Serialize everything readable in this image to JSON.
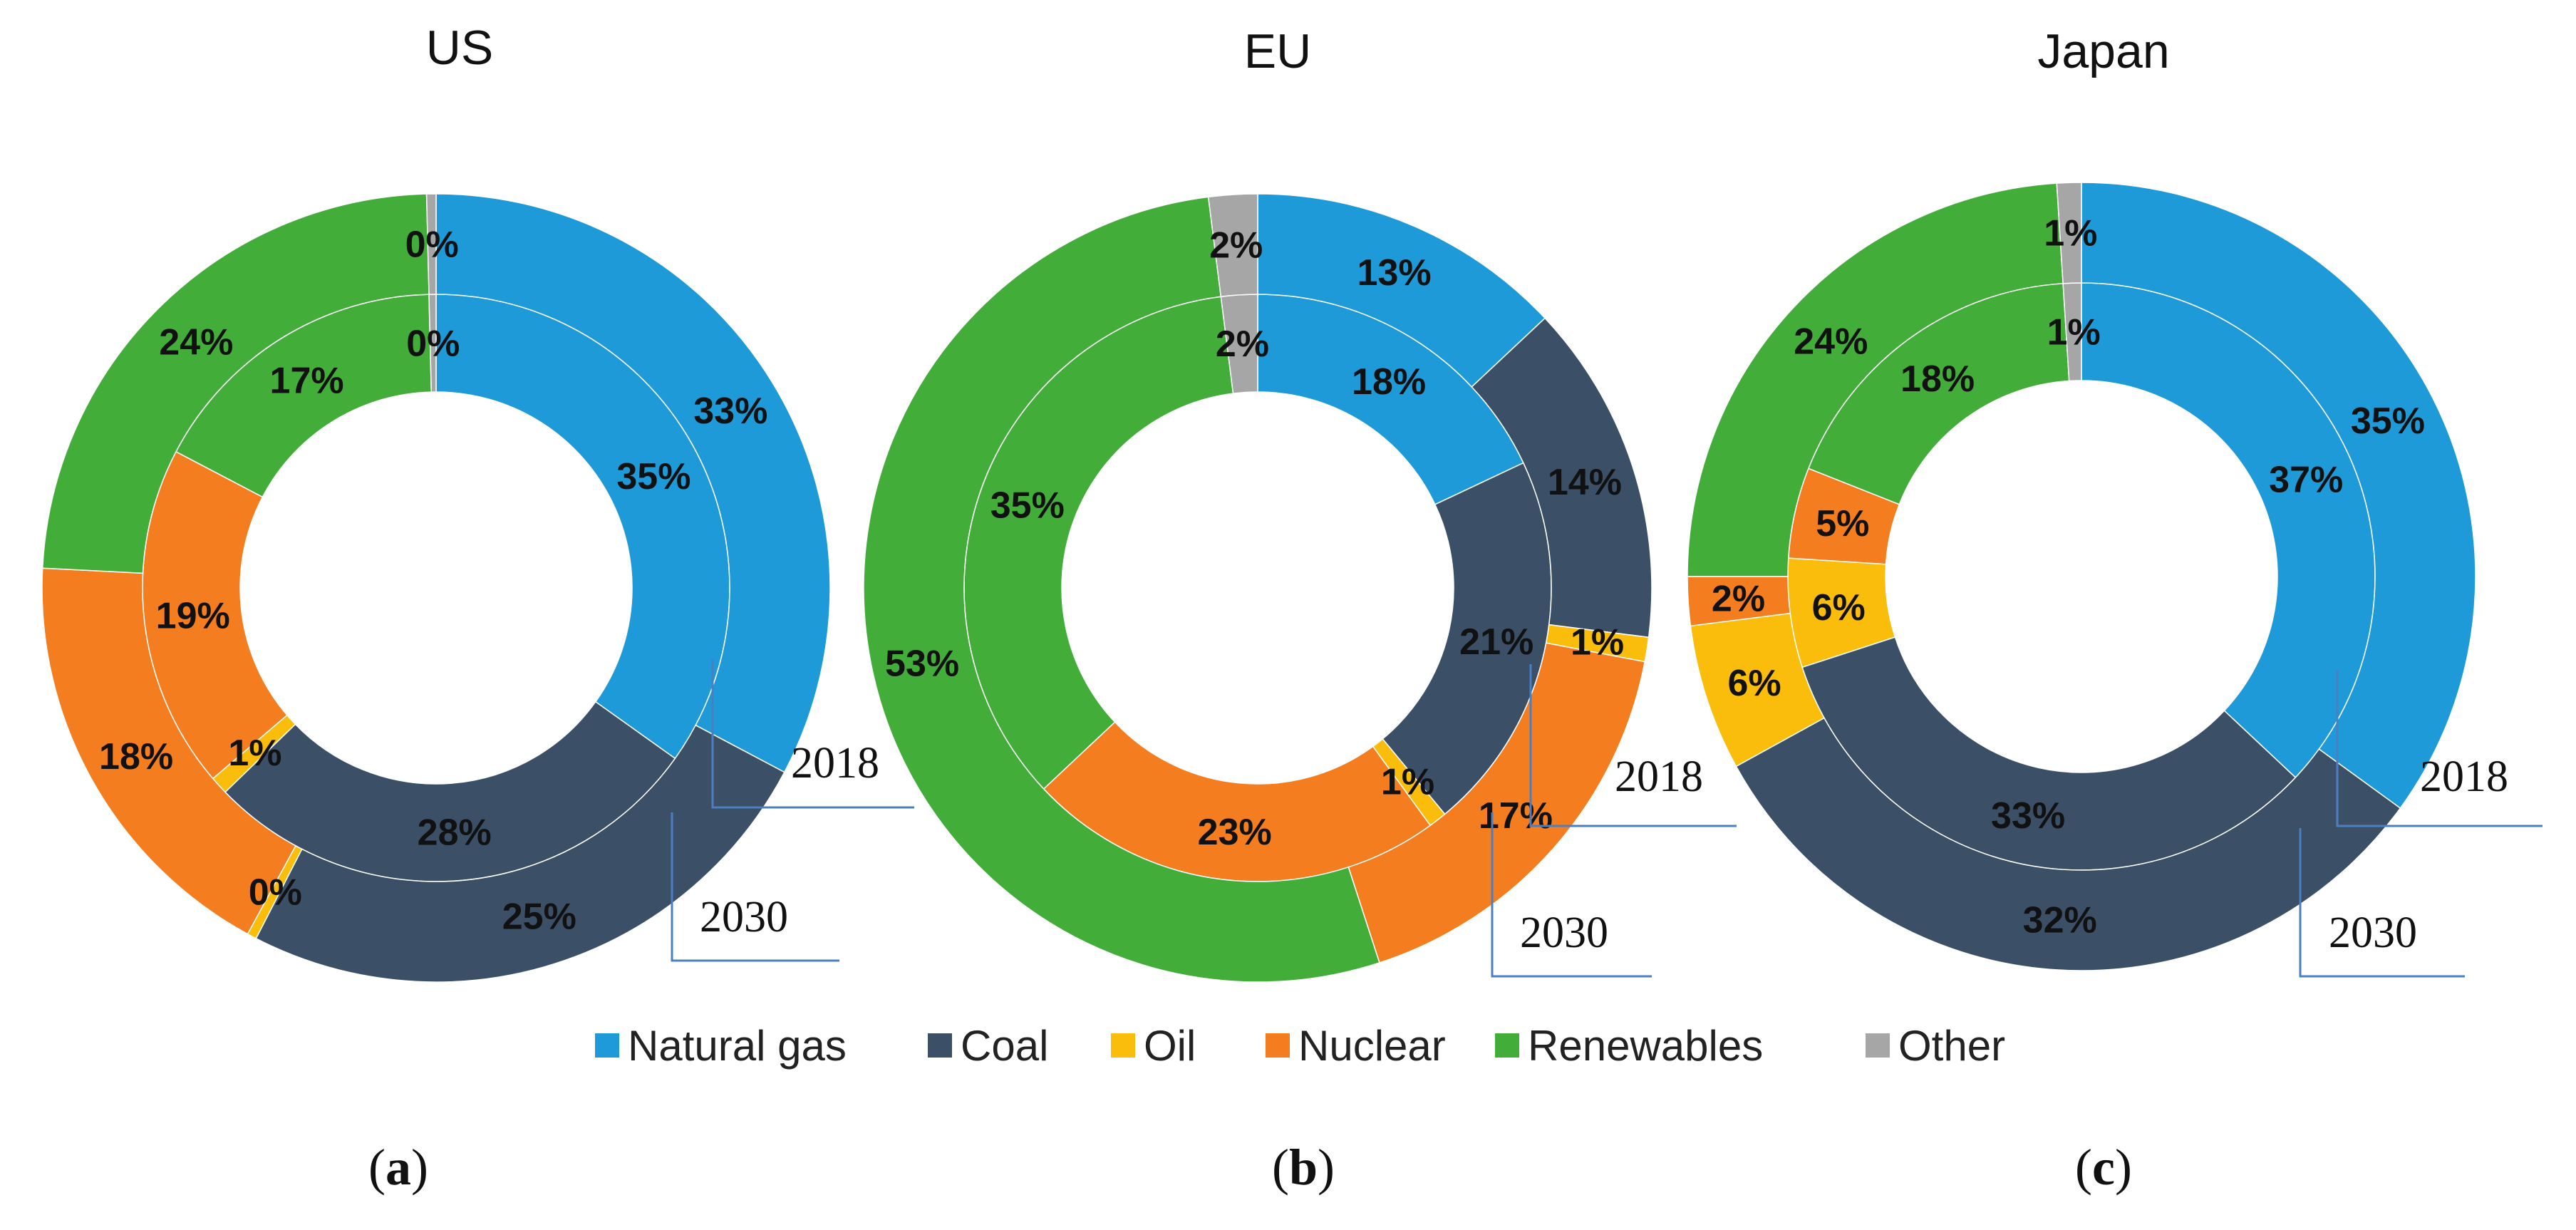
{
  "colors": {
    "natural_gas": "#1f9ad9",
    "coal": "#3b4f67",
    "oil": "#fbbd0b",
    "nuclear": "#f47d20",
    "renewables": "#43ad3a",
    "other": "#a6a6a6"
  },
  "legend": [
    {
      "key": "natural_gas",
      "label": "Natural gas"
    },
    {
      "key": "coal",
      "label": "Coal"
    },
    {
      "key": "oil",
      "label": "Oil"
    },
    {
      "key": "nuclear",
      "label": "Nuclear"
    },
    {
      "key": "renewables",
      "label": "Renewables"
    },
    {
      "key": "other",
      "label": "Other"
    }
  ],
  "chart_data": [
    {
      "type": "pie",
      "variant": "nested-donut",
      "title": "US",
      "caption_letter": "a",
      "categories": [
        "Natural gas",
        "Coal",
        "Oil",
        "Nuclear",
        "Renewables",
        "Other"
      ],
      "series": [
        {
          "name": "2018",
          "ring": "inner",
          "values": [
            35,
            28,
            1,
            19,
            17,
            0
          ],
          "labels": [
            "35%",
            "28%",
            "1%",
            "19%",
            "17%",
            "0%"
          ]
        },
        {
          "name": "2030",
          "ring": "outer",
          "values": [
            33,
            25,
            0,
            18,
            24,
            0
          ],
          "labels": [
            "33%",
            "25%",
            "0%",
            "18%",
            "24%",
            "0%"
          ]
        }
      ]
    },
    {
      "type": "pie",
      "variant": "nested-donut",
      "title": "EU",
      "caption_letter": "b",
      "categories": [
        "Natural gas",
        "Coal",
        "Oil",
        "Nuclear",
        "Renewables",
        "Other"
      ],
      "series": [
        {
          "name": "2018",
          "ring": "inner",
          "values": [
            18,
            21,
            1,
            23,
            35,
            2
          ],
          "labels": [
            "18%",
            "21%",
            "1%",
            "23%",
            "35%",
            "2%"
          ]
        },
        {
          "name": "2030",
          "ring": "outer",
          "values": [
            13,
            14,
            1,
            17,
            53,
            2
          ],
          "labels": [
            "13%",
            "14%",
            "1%",
            "17%",
            "53%",
            "2%"
          ]
        }
      ]
    },
    {
      "type": "pie",
      "variant": "nested-donut",
      "title": "Japan",
      "caption_letter": "c",
      "categories": [
        "Natural gas",
        "Coal",
        "Oil",
        "Nuclear",
        "Renewables",
        "Other"
      ],
      "series": [
        {
          "name": "2018",
          "ring": "inner",
          "values": [
            37,
            33,
            6,
            5,
            18,
            1
          ],
          "labels": [
            "37%",
            "33%",
            "6%",
            "5%",
            "18%",
            "1%"
          ]
        },
        {
          "name": "2030",
          "ring": "outer",
          "values": [
            35,
            32,
            6,
            2,
            24,
            1
          ],
          "labels": [
            "35%",
            "32%",
            "6%",
            "2%",
            "24%",
            "1%"
          ]
        }
      ]
    }
  ]
}
